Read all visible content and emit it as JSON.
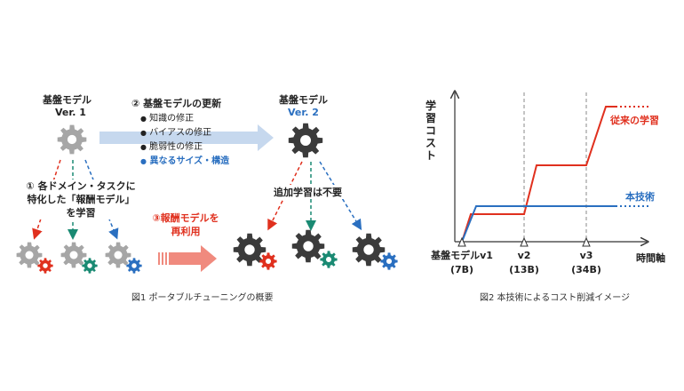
{
  "fig1": {
    "base_v1_title": "基盤モデル",
    "base_v1_ver": "Ver. 1",
    "base_v2_title": "基盤モデル",
    "base_v2_ver": "Ver. 2",
    "step2_title": "② 基盤モデルの更新",
    "bullets": [
      "知識の修正",
      "バイアスの修正",
      "脆弱性の修正",
      "異なるサイズ・構造"
    ],
    "step1_lines": [
      "① 各ドメイン・タスクに",
      "特化した「報酬モデル」",
      "を学習"
    ],
    "step3_lines": [
      "③報酬モデルを",
      "再利用"
    ],
    "no_retrain": "追加学習は不要",
    "caption": "図1 ポータブルチューニングの概要"
  },
  "fig2": {
    "ylabel": "学習コスト",
    "xlabel": "時間軸",
    "conventional_label": "従来の学習",
    "proposed_label": "本技術",
    "version_labels": [
      {
        "name": "基盤モデルv1",
        "size": "(7B)"
      },
      {
        "name": "v2",
        "size": "(13B)"
      },
      {
        "name": "v3",
        "size": "(34B)"
      }
    ],
    "caption": "図2 本技術によるコスト削減イメージ"
  },
  "colors": {
    "gray_gear": "#a6a6a6",
    "dark_gear": "#3b3b3b",
    "red": "#e0301e",
    "green": "#1a8a73",
    "blue": "#2a6fc0",
    "light_arrow": "#c6d8ee",
    "reuse_arrow": "#f08a7e"
  }
}
